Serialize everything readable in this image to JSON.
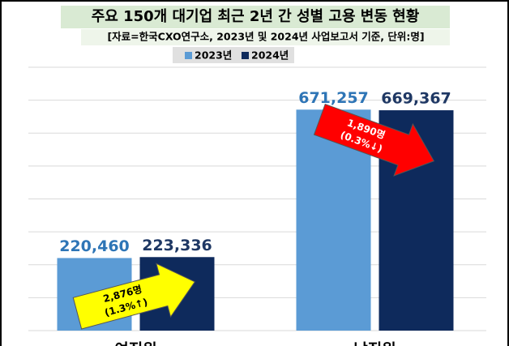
{
  "chart_data": {
    "type": "bar",
    "title": "주요 150개 대기업 최근 2년 간 성별 고용 변동 현황",
    "subtitle": "[자료=한국CXO연구소, 2023년 및 2024년 사업보고서 기준, 단위:명]",
    "categories": [
      "여직원",
      "남직원"
    ],
    "series": [
      {
        "name": "2023년",
        "color": "#5b9bd5",
        "values": [
          220460,
          671257
        ],
        "value_labels": [
          "220,460",
          "671,257"
        ]
      },
      {
        "name": "2024년",
        "color": "#0e2a5c",
        "values": [
          223336,
          669367
        ],
        "value_labels": [
          "223,336",
          "669,367"
        ]
      }
    ],
    "ylim": [
      0,
      800000
    ],
    "yticks": [
      0,
      100000,
      200000,
      300000,
      400000,
      500000,
      600000,
      700000,
      800000
    ],
    "grid": true,
    "annotations": [
      {
        "text": "2,876명",
        "subtext": "(1.3%↑)"
      },
      {
        "text": "1,890명",
        "subtext": "(0.3%↓)"
      }
    ]
  }
}
